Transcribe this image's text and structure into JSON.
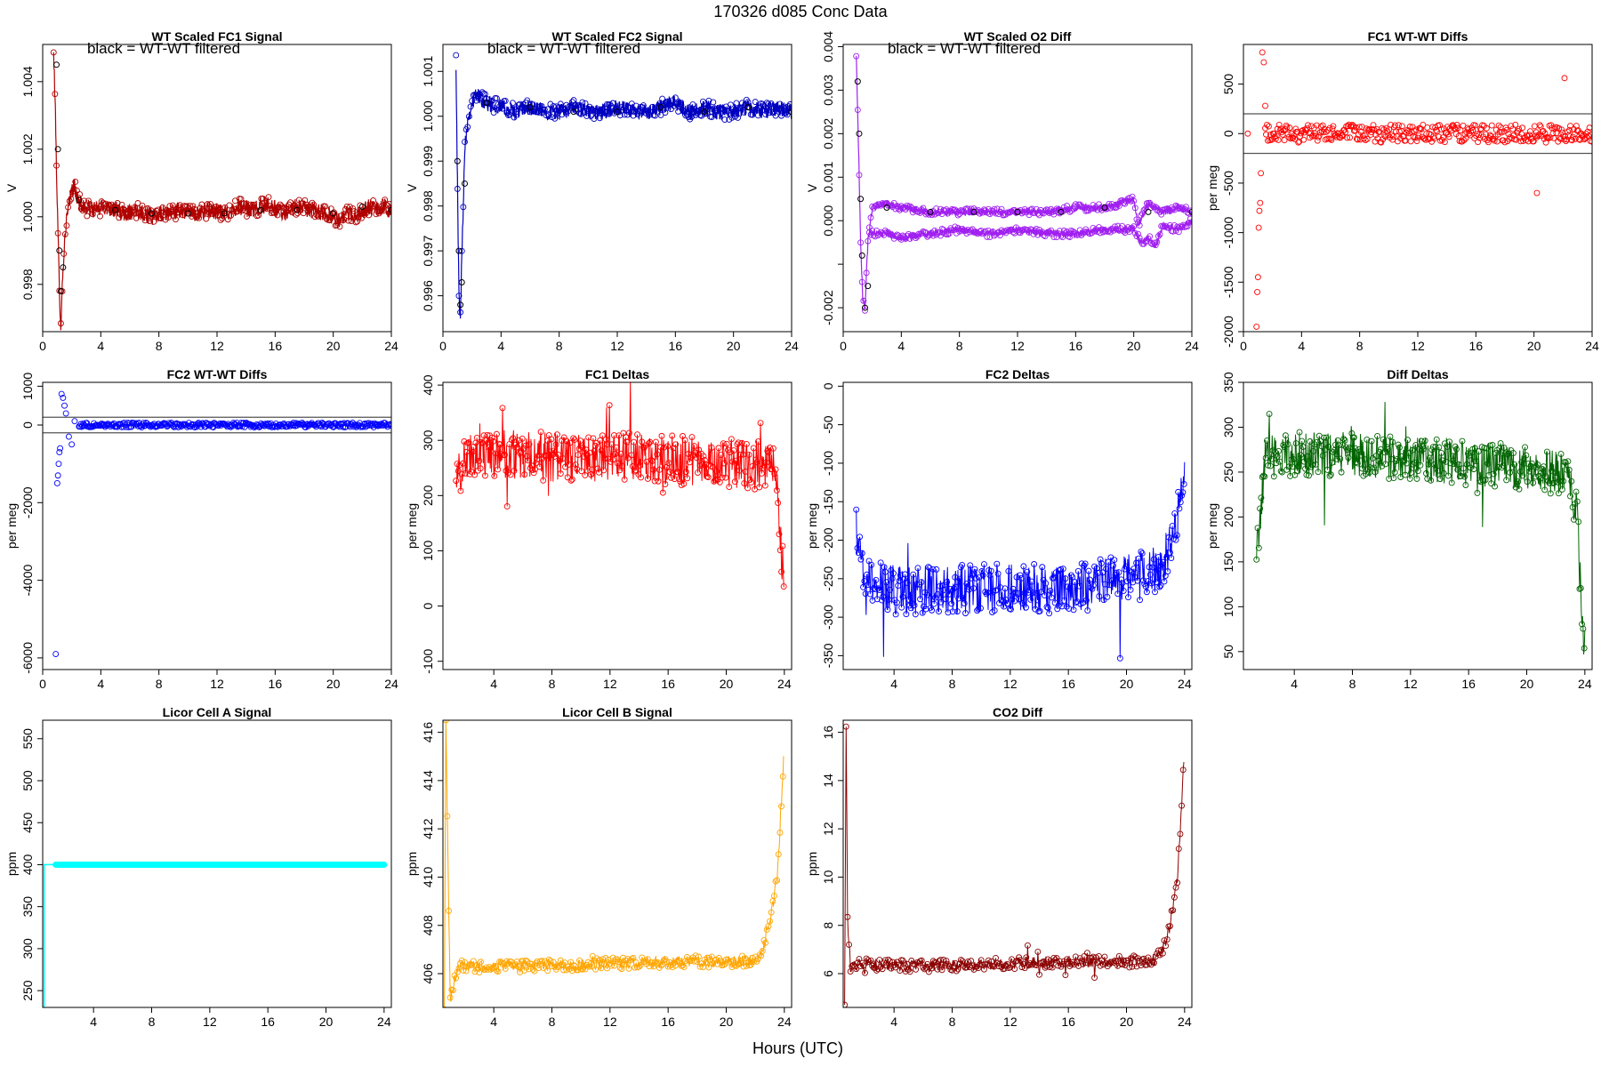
{
  "figure": {
    "title": "170326    d085    Conc Data",
    "xlabel": "Hours (UTC)"
  },
  "colors": {
    "fc1_signal": "#b00000",
    "fc1_filtered": "#8b0000",
    "fc1_raw": "#e0205a",
    "fc2_signal": "#0000c0",
    "fc2_filtered": "#00008b",
    "o2diff": "#a020f0",
    "o2diff_raw": "#e080e8",
    "red": "#ff0000",
    "blue": "#0000ff",
    "green": "#006400",
    "cyan": "#00ffff",
    "orange": "#ffa500",
    "darkred": "#8b0000",
    "black": "#000000",
    "gray": "#555555"
  },
  "chart_data": [
    {
      "id": "p1",
      "type": "scatter",
      "title": "WT Scaled FC1 Signal",
      "note": "black = WT-WT filtered",
      "xlabel": "",
      "ylabel": "V",
      "xlim": [
        0,
        24
      ],
      "ylim": [
        0.9966,
        1.0051
      ],
      "xticks": [
        0,
        4,
        8,
        12,
        16,
        20,
        24
      ],
      "yticks": [
        0.998,
        1.0,
        1.002,
        1.004
      ],
      "ytick_labels": [
        "0.998",
        "1.000",
        "1.002",
        "1.004"
      ],
      "series": [
        {
          "name": "WT Scaled FC1 Signal",
          "color_key": "fc1_signal",
          "style": "noisy",
          "spread": 0.00025,
          "x": [
            0.75,
            0.85,
            0.95,
            1.05,
            1.15,
            1.25,
            1.4,
            1.6,
            1.8,
            2.0,
            2.2,
            2.4,
            2.8,
            3.5,
            4.5,
            5.5,
            6.5,
            7.5,
            8.5,
            9.5,
            10.5,
            11.5,
            12.5,
            13.5,
            14.5,
            15.5,
            16.5,
            17.5,
            18.5,
            19.5,
            20.5,
            21.0,
            21.5,
            22.0,
            22.5,
            23.0,
            23.5,
            24.0
          ],
          "y": [
            1.0048,
            1.0035,
            1.0015,
            0.9995,
            0.9978,
            0.9968,
            0.9985,
            0.9998,
            1.0003,
            1.0008,
            1.0009,
            1.0005,
            1.0003,
            1.0002,
            1.0003,
            1.0001,
            1.0002,
            1.0,
            1.0001,
            1.0002,
            1.0001,
            1.0002,
            1.0001,
            1.0003,
            1.0002,
            1.0004,
            1.0001,
            1.0003,
            1.0002,
            1.0001,
            0.9999,
            1.0001,
            1.0,
            1.0002,
            1.0003,
            1.0002,
            1.0003,
            1.0002
          ]
        },
        {
          "name": "WT-WT filtered",
          "color_key": "black",
          "style": "points",
          "x": [
            0.95,
            1.05,
            1.15,
            1.25,
            1.4,
            2.5,
            5.0,
            7.5,
            10.0,
            12.5,
            15.0,
            17.5,
            20.0,
            22.0,
            24.0
          ],
          "y": [
            1.0045,
            1.002,
            0.999,
            0.9978,
            0.9985,
            1.0005,
            1.0002,
            1.0001,
            1.0001,
            1.0001,
            1.0002,
            1.0002,
            1.0001,
            1.0003,
            1.0002
          ]
        }
      ]
    },
    {
      "id": "p2",
      "type": "scatter",
      "title": "WT Scaled FC2 Signal",
      "note": "black = WT-WT filtered",
      "xlabel": "",
      "ylabel": "V",
      "xlim": [
        0,
        24
      ],
      "ylim": [
        0.9952,
        1.0016
      ],
      "xticks": [
        0,
        4,
        8,
        12,
        16,
        20,
        24
      ],
      "yticks": [
        0.996,
        0.997,
        0.998,
        0.999,
        1.0,
        1.001
      ],
      "ytick_labels": [
        "0.996",
        "0.997",
        "0.998",
        "0.999",
        "1.000",
        "1.001"
      ],
      "series": [
        {
          "name": "WT Scaled FC2 Signal",
          "color_key": "fc2_signal",
          "style": "noisy",
          "spread": 0.00018,
          "x": [
            0.9,
            1.0,
            1.1,
            1.2,
            1.35,
            1.5,
            1.7,
            2.0,
            2.3,
            2.6,
            3.0,
            4.0,
            5.0,
            6.0,
            7.0,
            8.0,
            9.0,
            10.0,
            11.0,
            12.0,
            13.0,
            14.0,
            15.0,
            16.0,
            17.0,
            18.0,
            19.0,
            20.0,
            21.0,
            22.0,
            23.0,
            24.0
          ],
          "y": [
            1.0012,
            0.9985,
            0.996,
            0.9955,
            0.9975,
            0.9993,
            0.9999,
            1.0003,
            1.0005,
            1.0004,
            1.0003,
            1.0002,
            1.0001,
            1.0002,
            1.0001,
            1.0001,
            1.0002,
            1.0001,
            1.0001,
            1.0002,
            1.0001,
            1.0001,
            1.0002,
            1.0003,
            1.0001,
            1.0002,
            1.0001,
            1.0001,
            1.0002,
            1.0001,
            1.0002,
            1.0001
          ]
        },
        {
          "name": "WT-WT filtered",
          "color_key": "black",
          "style": "points",
          "x": [
            1.0,
            1.1,
            1.2,
            1.3,
            1.5,
            3.0,
            6.0,
            9.0,
            12.0,
            15.0,
            18.0,
            21.0,
            24.0
          ],
          "y": [
            0.999,
            0.997,
            0.9958,
            0.9963,
            0.9985,
            1.0003,
            1.0002,
            1.0001,
            1.0001,
            1.0002,
            1.0001,
            1.0002,
            1.0001
          ]
        }
      ]
    },
    {
      "id": "p3",
      "type": "scatter",
      "title": "WT Scaled O2 Diff",
      "note": "black = WT-WT filtered",
      "xlabel": "",
      "ylabel": "V",
      "xlim": [
        0,
        24
      ],
      "ylim": [
        -0.00255,
        0.00405
      ],
      "xticks": [
        0,
        4,
        8,
        12,
        16,
        20,
        24
      ],
      "yticks": [
        -0.002,
        -0.001,
        0.0,
        0.001,
        0.002,
        0.003,
        0.004
      ],
      "ytick_labels": [
        "-0.002",
        "",
        "0.000",
        "0.001",
        "0.002",
        "0.003",
        "0.004"
      ],
      "series": [
        {
          "name": "O2 Diff upper",
          "color_key": "o2diff",
          "style": "noisy",
          "spread": 8e-05,
          "x": [
            0.9,
            1.0,
            1.1,
            1.2,
            1.35,
            1.5,
            1.7,
            2.0,
            3.0,
            4.0,
            6.0,
            8.0,
            10.0,
            12.0,
            14.0,
            16.0,
            18.0,
            20.0,
            20.3,
            21.0,
            22.0,
            23.0,
            24.0
          ],
          "y": [
            0.0038,
            0.0025,
            0.001,
            -0.0005,
            -0.0018,
            -0.002,
            -0.0005,
            0.0003,
            0.0004,
            0.0003,
            0.0002,
            0.0002,
            0.0002,
            0.0002,
            0.0002,
            0.0003,
            0.0003,
            0.0005,
            -0.0001,
            0.0004,
            0.0002,
            0.0003,
            0.0002
          ]
        },
        {
          "name": "O2 Diff lower",
          "color_key": "o2diff",
          "style": "noisy",
          "spread": 8e-05,
          "x": [
            1.8,
            2.0,
            3.0,
            4.0,
            6.0,
            8.0,
            10.0,
            12.0,
            14.0,
            16.0,
            18.0,
            20.0,
            20.5,
            21.0,
            21.5,
            22.0,
            23.0,
            24.0
          ],
          "y": [
            -0.0002,
            -0.0003,
            -0.0003,
            -0.0004,
            -0.0003,
            -0.0002,
            -0.0003,
            -0.0002,
            -0.0003,
            -0.0003,
            -0.0002,
            -0.0002,
            -0.0005,
            -0.0004,
            -0.0006,
            -0.0001,
            -0.0002,
            0.0
          ]
        },
        {
          "name": "WT-WT filtered",
          "color_key": "black",
          "style": "points",
          "x": [
            1.0,
            1.1,
            1.2,
            1.3,
            1.5,
            1.7,
            3.0,
            6.0,
            9.0,
            12.0,
            15.0,
            18.0,
            21.0,
            24.0
          ],
          "y": [
            0.0032,
            0.002,
            0.0005,
            -0.0008,
            -0.002,
            -0.0015,
            0.0003,
            0.0002,
            0.0002,
            0.0002,
            0.0002,
            0.0003,
            0.0002,
            0.0002
          ]
        }
      ]
    },
    {
      "id": "p4",
      "type": "scatter",
      "title": "FC1 WT-WT Diffs",
      "xlabel": "",
      "ylabel": "per meg",
      "xlim": [
        0,
        24
      ],
      "ylim": [
        -2000,
        900
      ],
      "xticks": [
        0,
        4,
        8,
        12,
        16,
        20,
        24
      ],
      "yticks": [
        -2000,
        -1500,
        -1000,
        -500,
        0,
        500
      ],
      "ytick_labels": [
        "-2000",
        "-1500",
        "-1000",
        "-500",
        "0",
        "500"
      ],
      "hlines": [
        200,
        -200
      ],
      "series": [
        {
          "name": "FC1 WT-WT Diffs",
          "color_key": "red",
          "style": "scatter",
          "spread": 90,
          "every": 0.06,
          "xstart": 1.5,
          "xend": 24.0,
          "base": 0,
          "x": [
            0.3,
            0.9,
            0.95,
            1.0,
            1.05,
            1.1,
            1.15,
            1.2,
            1.3,
            1.4,
            1.5,
            20.2,
            22.1
          ],
          "y": [
            0,
            -1950,
            -1600,
            -1450,
            -950,
            -780,
            -700,
            -400,
            820,
            720,
            280,
            -600,
            560
          ]
        }
      ]
    },
    {
      "id": "p5",
      "type": "scatter",
      "title": "FC2 WT-WT Diffs",
      "xlabel": "",
      "ylabel": "per meg",
      "xlim": [
        0,
        24
      ],
      "ylim": [
        -6300,
        1100
      ],
      "xticks": [
        0,
        4,
        8,
        12,
        16,
        20,
        24
      ],
      "yticks": [
        -6000,
        -4000,
        -2000,
        0,
        1000
      ],
      "ytick_labels": [
        "-6000",
        "-4000",
        "-2000",
        "0",
        "1000"
      ],
      "hlines": [
        200,
        -200
      ],
      "series": [
        {
          "name": "FC2 WT-WT Diffs",
          "color_key": "blue",
          "style": "scatter",
          "spread": 60,
          "every": 0.06,
          "xstart": 2.5,
          "xend": 24.0,
          "base": 0,
          "x": [
            0.9,
            1.0,
            1.05,
            1.1,
            1.15,
            1.2,
            1.3,
            1.4,
            1.5,
            1.6,
            1.8,
            2.0,
            2.2
          ],
          "y": [
            -5900,
            -1500,
            -1300,
            -1000,
            -700,
            -600,
            800,
            700,
            500,
            300,
            -300,
            -500,
            100
          ]
        }
      ]
    },
    {
      "id": "p6",
      "type": "line",
      "title": "FC1 Deltas",
      "xlabel": "",
      "ylabel": "per meg",
      "xlim": [
        0.5,
        24.5
      ],
      "ylim": [
        -115,
        405
      ],
      "xticks": [
        4,
        8,
        12,
        16,
        20,
        24
      ],
      "yticks": [
        -100,
        0,
        100,
        200,
        300,
        400
      ],
      "ytick_labels": [
        "-100",
        "0",
        "100",
        "200",
        "300",
        "400"
      ],
      "series": [
        {
          "name": "FC1 Deltas",
          "color_key": "red",
          "style": "noisyline",
          "spread": 45,
          "every": 0.04,
          "x": [
            1.4,
            2.0,
            4.0,
            8.0,
            12.0,
            16.0,
            20.0,
            22.0,
            23.0,
            23.5,
            23.8,
            24.0
          ],
          "y": [
            220,
            270,
            275,
            270,
            270,
            265,
            260,
            255,
            250,
            230,
            80,
            40
          ]
        }
      ]
    },
    {
      "id": "p7",
      "type": "line",
      "title": "FC2 Deltas",
      "xlabel": "",
      "ylabel": "per meg",
      "xlim": [
        0.5,
        24.5
      ],
      "ylim": [
        -368,
        5
      ],
      "xticks": [
        4,
        8,
        12,
        16,
        20,
        24
      ],
      "yticks": [
        -350,
        -300,
        -250,
        -200,
        -150,
        -100,
        -50,
        0
      ],
      "ytick_labels": [
        "-350",
        "-300",
        "-250",
        "-200",
        "-150",
        "-100",
        "-50",
        "0"
      ],
      "series": [
        {
          "name": "FC2 Deltas",
          "color_key": "blue",
          "style": "noisyline",
          "spread": 32,
          "every": 0.04,
          "x": [
            1.4,
            2.0,
            4.0,
            8.0,
            12.0,
            16.0,
            20.0,
            21.5,
            22.5,
            23.0,
            23.5,
            24.0
          ],
          "y": [
            -190,
            -250,
            -265,
            -265,
            -260,
            -265,
            -250,
            -245,
            -230,
            -200,
            -170,
            -100
          ]
        }
      ]
    },
    {
      "id": "p8",
      "type": "line",
      "title": "Diff Deltas",
      "xlabel": "",
      "ylabel": "per meg",
      "xlim": [
        0.5,
        24.5
      ],
      "ylim": [
        30,
        350
      ],
      "xticks": [
        4,
        8,
        12,
        16,
        20,
        24
      ],
      "yticks": [
        50,
        100,
        150,
        200,
        250,
        300,
        350
      ],
      "ytick_labels": [
        "50",
        "100",
        "150",
        "200",
        "250",
        "300",
        "350"
      ],
      "series": [
        {
          "name": "Diff Deltas",
          "color_key": "green",
          "style": "noisyline",
          "spread": 25,
          "every": 0.04,
          "x": [
            1.4,
            2.0,
            4.0,
            8.0,
            12.0,
            16.0,
            20.0,
            22.0,
            23.0,
            23.5,
            23.8,
            24.0
          ],
          "y": [
            160,
            265,
            270,
            270,
            265,
            260,
            255,
            250,
            240,
            200,
            80,
            50
          ]
        }
      ]
    },
    {
      "id": "p9",
      "type": "line",
      "title": "Licor Cell A Signal",
      "xlabel": "",
      "ylabel": "ppm",
      "xlim": [
        0.5,
        24.5
      ],
      "ylim": [
        230,
        572
      ],
      "xticks": [
        4,
        8,
        12,
        16,
        20,
        24
      ],
      "yticks": [
        250,
        300,
        350,
        400,
        450,
        500,
        550
      ],
      "ytick_labels": [
        "250",
        "300",
        "350",
        "400",
        "450",
        "500",
        "550"
      ],
      "series": [
        {
          "name": "Licor Cell A Signal",
          "color_key": "cyan",
          "style": "thickline",
          "x": [
            0.6,
            0.6,
            0.65,
            1.4,
            24.0
          ],
          "y": [
            230,
            400,
            400,
            400,
            400
          ]
        }
      ]
    },
    {
      "id": "p10",
      "type": "line",
      "title": "Licor Cell B Signal",
      "xlabel": "",
      "ylabel": "ppm",
      "xlim": [
        0.5,
        24.5
      ],
      "ylim": [
        404.6,
        416.5
      ],
      "xticks": [
        4,
        8,
        12,
        16,
        20,
        24
      ],
      "yticks": [
        406,
        408,
        410,
        412,
        414,
        416
      ],
      "ytick_labels": [
        "406",
        "408",
        "410",
        "412",
        "414",
        "416"
      ],
      "series": [
        {
          "name": "Licor Cell B Signal",
          "color_key": "orange",
          "style": "noisyline",
          "spread": 0.25,
          "every": 0.05,
          "x": [
            0.6,
            0.7,
            1.0,
            1.5,
            2.0,
            6.0,
            11.0,
            16.0,
            17.0,
            21.0,
            22.0,
            22.5,
            23.0,
            23.5,
            23.8,
            24.0
          ],
          "y": [
            404.7,
            416.4,
            404.8,
            406.3,
            406.3,
            406.3,
            406.4,
            406.5,
            406.5,
            406.5,
            406.6,
            407.0,
            408.0,
            410.0,
            413.0,
            415.5
          ]
        }
      ]
    },
    {
      "id": "p11",
      "type": "line",
      "title": "CO2 Diff",
      "xlabel": "",
      "ylabel": "ppm",
      "xlim": [
        0.5,
        24.5
      ],
      "ylim": [
        4.6,
        16.5
      ],
      "xticks": [
        4,
        8,
        12,
        16,
        20,
        24
      ],
      "yticks": [
        6,
        8,
        10,
        12,
        14,
        16
      ],
      "ytick_labels": [
        "6",
        "8",
        "10",
        "12",
        "14",
        "16"
      ],
      "series": [
        {
          "name": "CO2 Diff",
          "color_key": "darkred",
          "style": "noisyline",
          "spread": 0.25,
          "every": 0.05,
          "x": [
            0.6,
            0.7,
            0.8,
            1.0,
            1.5,
            2.0,
            6.0,
            11.0,
            16.0,
            17.0,
            21.0,
            22.0,
            22.5,
            23.0,
            23.5,
            23.8,
            24.0
          ],
          "y": [
            4.7,
            16.4,
            8.5,
            6.3,
            6.4,
            6.4,
            6.3,
            6.4,
            6.5,
            6.5,
            6.5,
            6.6,
            7.0,
            8.0,
            10.0,
            13.0,
            15.5
          ]
        }
      ]
    }
  ]
}
